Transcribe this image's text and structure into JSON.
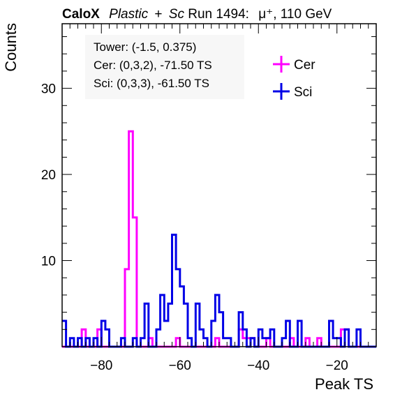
{
  "header": {
    "brand": "CaloX",
    "detector_italic_1": "Plastic",
    "plus": "+",
    "detector_italic_2": "Sc",
    "run_text": "Run 1494:",
    "particle_energy": "μ⁺, 110 GeV"
  },
  "info": {
    "tower": "Tower: (-1.5, 0.375)",
    "cer": "Cer: (0,3,2), -71.50 TS",
    "sci": "Sci: (0,3,3), -61.50 TS"
  },
  "colors": {
    "cer": "#ff00ff",
    "sci": "#0000e6"
  },
  "chart_data": {
    "type": "histogram",
    "xlabel": "Peak TS",
    "ylabel": "Counts",
    "xlim": [
      -90,
      -10
    ],
    "ylim": [
      0,
      37.5
    ],
    "x_ticks": [
      -80,
      -60,
      -40,
      -20
    ],
    "y_ticks": [
      10,
      20,
      30
    ],
    "x_tick_labels": [
      "−80",
      "−60",
      "−40",
      "−20"
    ],
    "y_tick_labels": [
      "10",
      "20",
      "30"
    ],
    "bin_width": 1,
    "legend": {
      "position": "top-right",
      "entries": [
        "Cer",
        "Sci"
      ]
    },
    "series": [
      {
        "name": "Cer",
        "color": "#ff00ff",
        "bins": [
          {
            "x": -85,
            "y": 2
          },
          {
            "x": -81,
            "y": 2
          },
          {
            "x": -74,
            "y": 9
          },
          {
            "x": -73,
            "y": 25
          },
          {
            "x": -72,
            "y": 15
          },
          {
            "x": -68,
            "y": 1
          },
          {
            "x": -61,
            "y": 1
          },
          {
            "x": -51,
            "y": 1
          },
          {
            "x": -45,
            "y": 2
          },
          {
            "x": -44,
            "y": 1
          },
          {
            "x": -43,
            "y": 1
          },
          {
            "x": -42,
            "y": 1
          },
          {
            "x": -38,
            "y": 1
          },
          {
            "x": -32,
            "y": 1
          },
          {
            "x": -28,
            "y": 1
          },
          {
            "x": -25,
            "y": 1
          },
          {
            "x": -19,
            "y": 2
          },
          {
            "x": -18,
            "y": 2
          }
        ]
      },
      {
        "name": "Sci",
        "color": "#0000e6",
        "bins": [
          {
            "x": -90,
            "y": 3
          },
          {
            "x": -88,
            "y": 1
          },
          {
            "x": -86,
            "y": 1
          },
          {
            "x": -84,
            "y": 1
          },
          {
            "x": -82,
            "y": 1
          },
          {
            "x": -80,
            "y": 3
          },
          {
            "x": -79,
            "y": 2
          },
          {
            "x": -75,
            "y": 1
          },
          {
            "x": -72,
            "y": 1
          },
          {
            "x": -70,
            "y": 1
          },
          {
            "x": -69,
            "y": 5
          },
          {
            "x": -66,
            "y": 2
          },
          {
            "x": -65,
            "y": 6
          },
          {
            "x": -64,
            "y": 3
          },
          {
            "x": -63,
            "y": 5
          },
          {
            "x": -62,
            "y": 13
          },
          {
            "x": -61,
            "y": 9
          },
          {
            "x": -60,
            "y": 7
          },
          {
            "x": -59,
            "y": 5
          },
          {
            "x": -58,
            "y": 1
          },
          {
            "x": -56,
            "y": 5
          },
          {
            "x": -55,
            "y": 2
          },
          {
            "x": -54,
            "y": 1
          },
          {
            "x": -52,
            "y": 3
          },
          {
            "x": -51,
            "y": 6
          },
          {
            "x": -50,
            "y": 4
          },
          {
            "x": -49,
            "y": 1
          },
          {
            "x": -48,
            "y": 1
          },
          {
            "x": -45,
            "y": 4
          },
          {
            "x": -44,
            "y": 2
          },
          {
            "x": -42,
            "y": 1
          },
          {
            "x": -40,
            "y": 2
          },
          {
            "x": -39,
            "y": 1
          },
          {
            "x": -38,
            "y": 1
          },
          {
            "x": -37,
            "y": 2
          },
          {
            "x": -34,
            "y": 1
          },
          {
            "x": -33,
            "y": 3
          },
          {
            "x": -30,
            "y": 3
          },
          {
            "x": -22,
            "y": 3
          },
          {
            "x": -21,
            "y": 1
          },
          {
            "x": -20,
            "y": 1
          },
          {
            "x": -18,
            "y": 2
          },
          {
            "x": -15,
            "y": 2
          }
        ]
      }
    ]
  }
}
